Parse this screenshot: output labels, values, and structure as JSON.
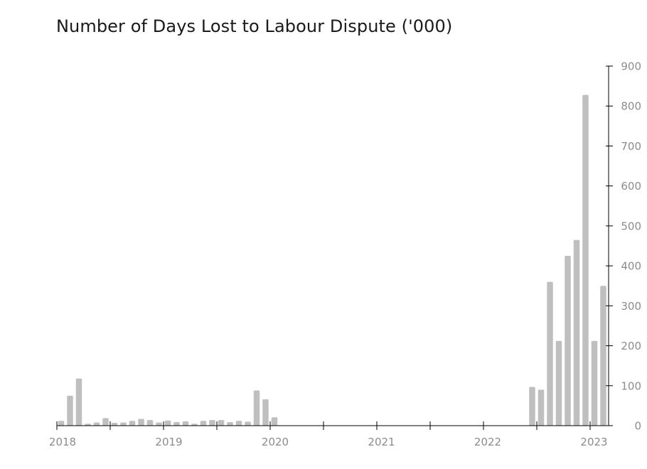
{
  "chart_data": {
    "type": "bar",
    "title": "Number of Days Lost to Labour Dispute ('000)",
    "xlabel": "",
    "ylabel": "",
    "ylim": [
      0,
      900
    ],
    "yticks": [
      0,
      100,
      200,
      300,
      400,
      500,
      600,
      700,
      800,
      900
    ],
    "y_axis_side": "right",
    "grid": false,
    "legend": "none",
    "bar_color": "#bfbfbf",
    "axis_color": "#000000",
    "tick_label_color": "#8c8c8c",
    "x_tick_labels": [
      "2018",
      "2019",
      "2020",
      "2021",
      "2022",
      "2023"
    ],
    "categories": [
      "2018-01",
      "2018-02",
      "2018-03",
      "2018-04",
      "2018-05",
      "2018-06",
      "2018-07",
      "2018-08",
      "2018-09",
      "2018-10",
      "2018-11",
      "2018-12",
      "2019-01",
      "2019-02",
      "2019-03",
      "2019-04",
      "2019-05",
      "2019-06",
      "2019-07",
      "2019-08",
      "2019-09",
      "2019-10",
      "2019-11",
      "2019-12",
      "2020-01",
      "2020-02",
      "2020-03",
      "2020-04",
      "2020-05",
      "2020-06",
      "2020-07",
      "2020-08",
      "2020-09",
      "2020-10",
      "2020-11",
      "2020-12",
      "2021-01",
      "2021-02",
      "2021-03",
      "2021-04",
      "2021-05",
      "2021-06",
      "2021-07",
      "2021-08",
      "2021-09",
      "2021-10",
      "2021-11",
      "2021-12",
      "2022-01",
      "2022-02",
      "2022-03",
      "2022-04",
      "2022-05",
      "2022-06",
      "2022-07",
      "2022-08",
      "2022-09",
      "2022-10",
      "2022-11",
      "2022-12",
      "2023-01",
      "2023-02"
    ],
    "values": [
      12,
      75,
      118,
      5,
      8,
      19,
      7,
      8,
      12,
      17,
      14,
      8,
      13,
      9,
      11,
      5,
      12,
      14,
      14,
      9,
      12,
      10,
      88,
      66,
      21,
      0,
      0,
      0,
      0,
      0,
      0,
      0,
      0,
      0,
      0,
      0,
      0,
      0,
      0,
      0,
      0,
      0,
      0,
      0,
      0,
      0,
      0,
      0,
      0,
      0,
      0,
      0,
      0,
      97,
      90,
      360,
      212,
      425,
      465,
      828,
      212,
      350
    ]
  }
}
